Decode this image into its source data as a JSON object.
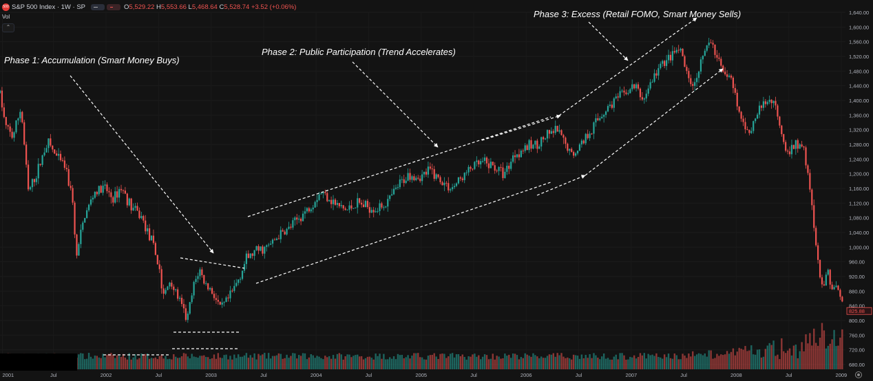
{
  "header": {
    "symbol": "S&P 500 Index · 1W · SP",
    "badge": "500",
    "ohlc": {
      "o_label": "O",
      "o": "5,529.22",
      "h_label": "H",
      "h": "5,553.66",
      "l_label": "L",
      "l": "5,468.64",
      "c_label": "C",
      "c": "5,528.74",
      "chg": "+3.52 (+0.06%)"
    },
    "vol_label": "Vol",
    "collapse_symbol": "⌃"
  },
  "colors": {
    "up": "#26a69a",
    "down": "#ef5350",
    "background": "#131313",
    "annotation": "#ffffff"
  },
  "chart_data": {
    "type": "candlestick",
    "price_axis": {
      "ticks": [
        "1,640.00",
        "1,600.00",
        "1,560.00",
        "1,520.00",
        "1,480.00",
        "1,440.00",
        "1,400.00",
        "1,360.00",
        "1,320.00",
        "1,280.00",
        "1,240.00",
        "1,200.00",
        "1,160.00",
        "1,120.00",
        "1,080.00",
        "1,040.00",
        "1,000.00",
        "960.00",
        "920.00",
        "880.00",
        "840.00",
        "800.00",
        "760.00",
        "720.00",
        "680.00"
      ],
      "last_price": "825.88",
      "ylim": [
        665,
        1645
      ]
    },
    "time_axis": {
      "labels": [
        "2001",
        "Jul",
        "2002",
        "Jul",
        "2003",
        "Jul",
        "2004",
        "Jul",
        "2005",
        "Jul",
        "2006",
        "Jul",
        "2007",
        "Jul",
        "2008",
        "Jul",
        "2009"
      ],
      "xlim": [
        2001.0,
        2009.05
      ]
    },
    "price_anchors": [
      [
        2001.0,
        1420
      ],
      [
        2001.05,
        1330
      ],
      [
        2001.12,
        1300
      ],
      [
        2001.2,
        1380
      ],
      [
        2001.27,
        1150
      ],
      [
        2001.35,
        1200
      ],
      [
        2001.45,
        1290
      ],
      [
        2001.55,
        1240
      ],
      [
        2001.62,
        1220
      ],
      [
        2001.7,
        1120
      ],
      [
        2001.72,
        960
      ],
      [
        2001.8,
        1080
      ],
      [
        2001.9,
        1150
      ],
      [
        2002.0,
        1160
      ],
      [
        2002.08,
        1130
      ],
      [
        2002.15,
        1165
      ],
      [
        2002.25,
        1110
      ],
      [
        2002.35,
        1080
      ],
      [
        2002.45,
        1010
      ],
      [
        2002.52,
        940
      ],
      [
        2002.55,
        860
      ],
      [
        2002.62,
        910
      ],
      [
        2002.7,
        860
      ],
      [
        2002.78,
        800
      ],
      [
        2002.85,
        900
      ],
      [
        2002.9,
        940
      ],
      [
        2002.95,
        900
      ],
      [
        2003.02,
        880
      ],
      [
        2003.1,
        830
      ],
      [
        2003.18,
        860
      ],
      [
        2003.25,
        900
      ],
      [
        2003.35,
        970
      ],
      [
        2003.45,
        990
      ],
      [
        2003.55,
        1000
      ],
      [
        2003.65,
        1030
      ],
      [
        2003.75,
        1050
      ],
      [
        2003.85,
        1080
      ],
      [
        2003.95,
        1110
      ],
      [
        2004.05,
        1150
      ],
      [
        2004.12,
        1140
      ],
      [
        2004.2,
        1115
      ],
      [
        2004.3,
        1100
      ],
      [
        2004.4,
        1120
      ],
      [
        2004.5,
        1110
      ],
      [
        2004.6,
        1105
      ],
      [
        2004.7,
        1125
      ],
      [
        2004.8,
        1170
      ],
      [
        2004.9,
        1200
      ],
      [
        2005.0,
        1190
      ],
      [
        2005.1,
        1210
      ],
      [
        2005.2,
        1180
      ],
      [
        2005.3,
        1160
      ],
      [
        2005.4,
        1190
      ],
      [
        2005.5,
        1220
      ],
      [
        2005.6,
        1230
      ],
      [
        2005.7,
        1220
      ],
      [
        2005.8,
        1200
      ],
      [
        2005.9,
        1255
      ],
      [
        2006.0,
        1270
      ],
      [
        2006.1,
        1280
      ],
      [
        2006.2,
        1300
      ],
      [
        2006.3,
        1320
      ],
      [
        2006.38,
        1280
      ],
      [
        2006.45,
        1250
      ],
      [
        2006.5,
        1270
      ],
      [
        2006.55,
        1290
      ],
      [
        2006.65,
        1330
      ],
      [
        2006.75,
        1370
      ],
      [
        2006.85,
        1400
      ],
      [
        2006.95,
        1420
      ],
      [
        2007.05,
        1440
      ],
      [
        2007.12,
        1400
      ],
      [
        2007.2,
        1450
      ],
      [
        2007.3,
        1500
      ],
      [
        2007.4,
        1520
      ],
      [
        2007.47,
        1540
      ],
      [
        2007.53,
        1480
      ],
      [
        2007.6,
        1450
      ],
      [
        2007.65,
        1490
      ],
      [
        2007.7,
        1530
      ],
      [
        2007.77,
        1560
      ],
      [
        2007.83,
        1510
      ],
      [
        2007.9,
        1480
      ],
      [
        2007.97,
        1450
      ],
      [
        2008.02,
        1380
      ],
      [
        2008.08,
        1330
      ],
      [
        2008.15,
        1320
      ],
      [
        2008.22,
        1370
      ],
      [
        2008.3,
        1400
      ],
      [
        2008.37,
        1400
      ],
      [
        2008.43,
        1330
      ],
      [
        2008.5,
        1250
      ],
      [
        2008.55,
        1270
      ],
      [
        2008.6,
        1280
      ],
      [
        2008.65,
        1270
      ],
      [
        2008.7,
        1200
      ],
      [
        2008.75,
        1050
      ],
      [
        2008.8,
        920
      ],
      [
        2008.85,
        880
      ],
      [
        2008.88,
        950
      ],
      [
        2008.92,
        880
      ],
      [
        2008.97,
        900
      ],
      [
        2009.0,
        870
      ],
      [
        2009.03,
        826
      ]
    ]
  },
  "annotations": {
    "phase1": "Phase 1: Accumulation (Smart Money Buys)",
    "phase2": "Phase 2: Public Participation (Trend Accelerates)",
    "phase3": "Phase 3: Excess (Retail FOMO, Smart Money Sells)"
  }
}
